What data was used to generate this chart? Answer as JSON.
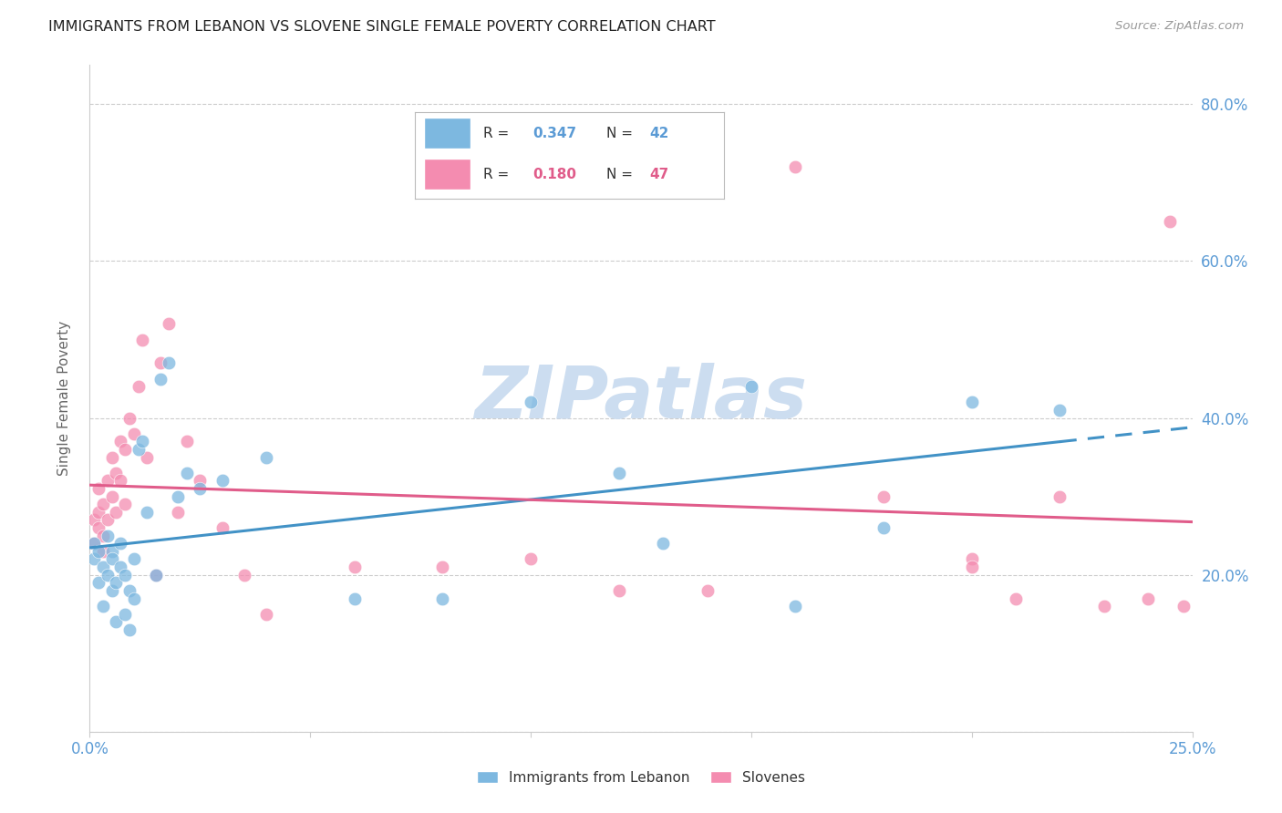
{
  "title": "IMMIGRANTS FROM LEBANON VS SLOVENE SINGLE FEMALE POVERTY CORRELATION CHART",
  "source": "Source: ZipAtlas.com",
  "ylabel": "Single Female Poverty",
  "x_min": 0.0,
  "x_max": 0.25,
  "y_min": 0.0,
  "y_max": 0.85,
  "x_ticks": [
    0.0,
    0.05,
    0.1,
    0.15,
    0.2,
    0.25
  ],
  "x_tick_labels": [
    "0.0%",
    "",
    "",
    "",
    "",
    "25.0%"
  ],
  "y_ticks": [
    0.0,
    0.2,
    0.4,
    0.6,
    0.8
  ],
  "y_tick_labels": [
    "",
    "20.0%",
    "40.0%",
    "60.0%",
    "80.0%"
  ],
  "legend_label_1": "Immigrants from Lebanon",
  "legend_label_2": "Slovenes",
  "R1": "0.347",
  "N1": "42",
  "R2": "0.180",
  "N2": "47",
  "color_blue": "#7db8e0",
  "color_pink": "#f48cb0",
  "color_blue_line": "#4292c6",
  "color_pink_line": "#e05c8a",
  "color_axis_text": "#5b9bd5",
  "color_title": "#333333",
  "color_grid": "#cccccc",
  "watermark_text": "ZIPatlas",
  "watermark_color": "#ccddf0",
  "lebanon_x": [
    0.001,
    0.001,
    0.002,
    0.002,
    0.003,
    0.003,
    0.004,
    0.004,
    0.005,
    0.005,
    0.005,
    0.006,
    0.006,
    0.007,
    0.007,
    0.008,
    0.008,
    0.009,
    0.009,
    0.01,
    0.01,
    0.011,
    0.012,
    0.013,
    0.015,
    0.016,
    0.018,
    0.02,
    0.022,
    0.025,
    0.03,
    0.04,
    0.06,
    0.08,
    0.1,
    0.12,
    0.13,
    0.15,
    0.16,
    0.18,
    0.2,
    0.22
  ],
  "lebanon_y": [
    0.24,
    0.22,
    0.19,
    0.23,
    0.21,
    0.16,
    0.2,
    0.25,
    0.23,
    0.18,
    0.22,
    0.19,
    0.14,
    0.21,
    0.24,
    0.2,
    0.15,
    0.18,
    0.13,
    0.22,
    0.17,
    0.36,
    0.37,
    0.28,
    0.2,
    0.45,
    0.47,
    0.3,
    0.33,
    0.31,
    0.32,
    0.35,
    0.17,
    0.17,
    0.42,
    0.33,
    0.24,
    0.44,
    0.16,
    0.26,
    0.42,
    0.41
  ],
  "slovene_x": [
    0.001,
    0.001,
    0.002,
    0.002,
    0.002,
    0.003,
    0.003,
    0.003,
    0.004,
    0.004,
    0.005,
    0.005,
    0.006,
    0.006,
    0.007,
    0.007,
    0.008,
    0.008,
    0.009,
    0.01,
    0.011,
    0.012,
    0.013,
    0.015,
    0.016,
    0.018,
    0.02,
    0.022,
    0.025,
    0.03,
    0.035,
    0.04,
    0.06,
    0.08,
    0.1,
    0.12,
    0.14,
    0.16,
    0.18,
    0.2,
    0.2,
    0.21,
    0.22,
    0.23,
    0.24,
    0.245,
    0.248
  ],
  "slovene_y": [
    0.27,
    0.24,
    0.28,
    0.26,
    0.31,
    0.25,
    0.29,
    0.23,
    0.32,
    0.27,
    0.3,
    0.35,
    0.33,
    0.28,
    0.37,
    0.32,
    0.36,
    0.29,
    0.4,
    0.38,
    0.44,
    0.5,
    0.35,
    0.2,
    0.47,
    0.52,
    0.28,
    0.37,
    0.32,
    0.26,
    0.2,
    0.15,
    0.21,
    0.21,
    0.22,
    0.18,
    0.18,
    0.72,
    0.3,
    0.22,
    0.21,
    0.17,
    0.3,
    0.16,
    0.17,
    0.65,
    0.16
  ]
}
